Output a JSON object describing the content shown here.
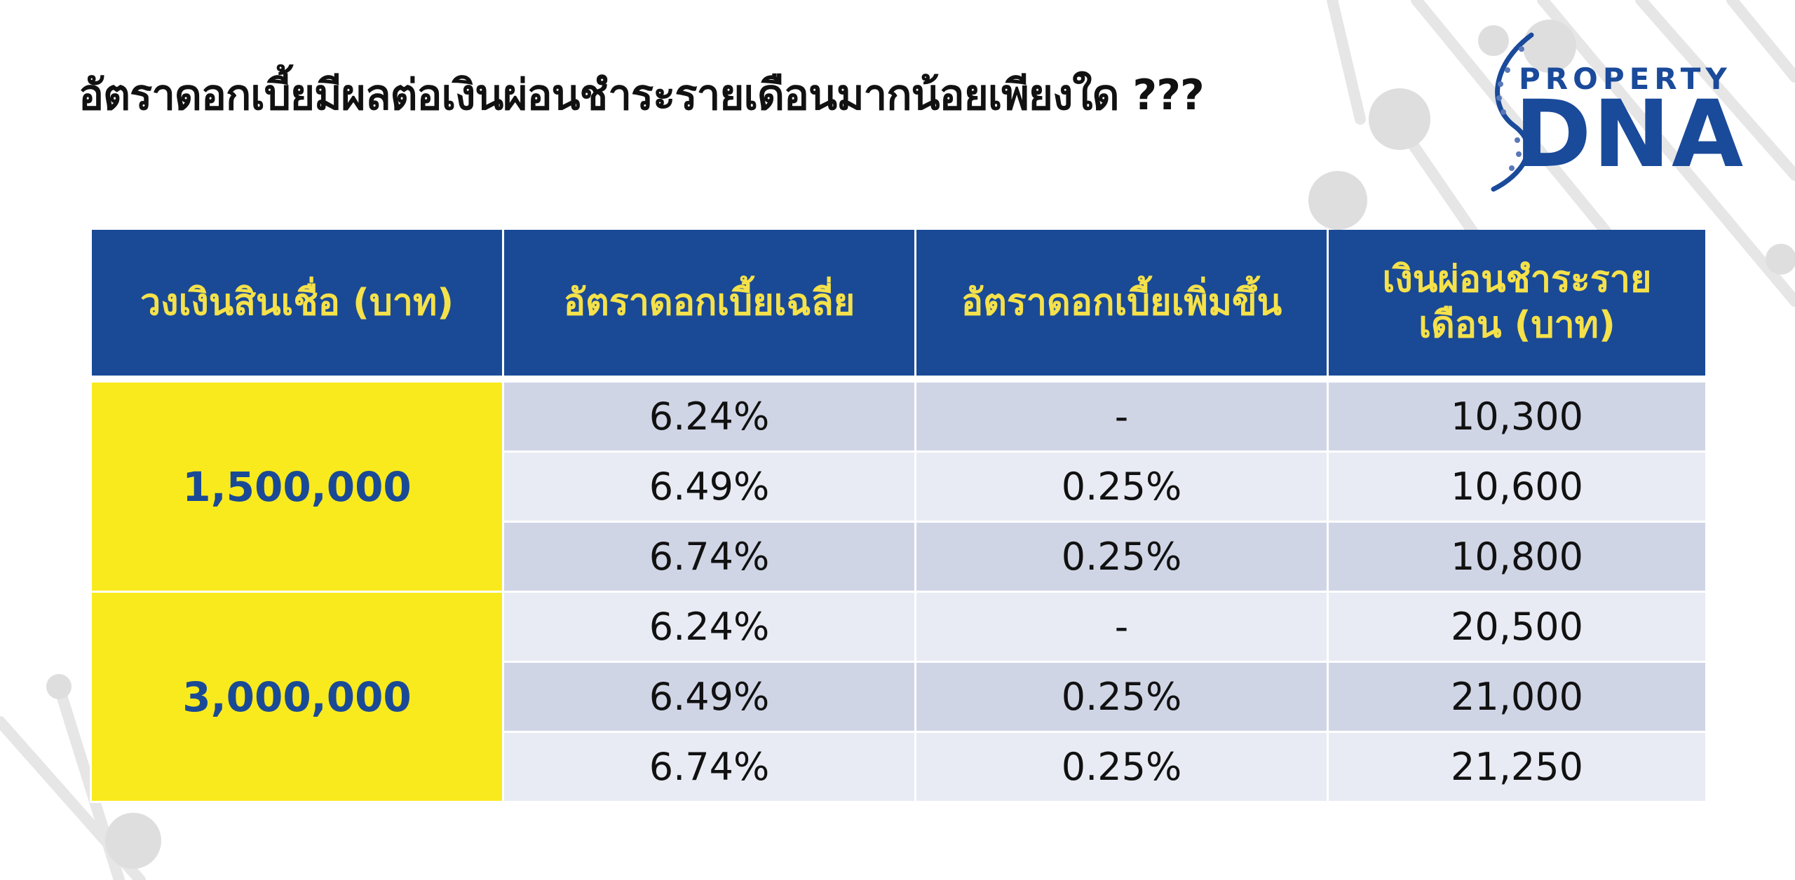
{
  "title": "อัตราดอกเบี้ยมีผลต่อเงินผ่อนชำระรายเดือนมากน้อยเพียงใด ???",
  "logo": {
    "top_word": "PROPERTY",
    "main_word": "DNA",
    "color": "#1a4a9a"
  },
  "colors": {
    "header_bg": "#1a4a96",
    "header_text": "#f5e14a",
    "loan_bg": "#f9ea1e",
    "row_dark": "#d0d5e6",
    "row_light": "#e8ebf3"
  },
  "table": {
    "headers": [
      "วงเงินสินเชื่อ (บาท)",
      "อัตราดอกเบี้ยเฉลี่ย",
      "อัตราดอกเบี้ยเพิ่มขึ้น",
      "เงินผ่อนชำระราย เดือน (บาท)"
    ],
    "groups": [
      {
        "loan": "1,500,000",
        "rows": [
          {
            "rate": "6.24%",
            "increase": "-",
            "payment": "10,300"
          },
          {
            "rate": "6.49%",
            "increase": "0.25%",
            "payment": "10,600"
          },
          {
            "rate": "6.74%",
            "increase": "0.25%",
            "payment": "10,800"
          }
        ]
      },
      {
        "loan": "3,000,000",
        "rows": [
          {
            "rate": "6.24%",
            "increase": "-",
            "payment": "20,500"
          },
          {
            "rate": "6.49%",
            "increase": "0.25%",
            "payment": "21,000"
          },
          {
            "rate": "6.74%",
            "increase": "0.25%",
            "payment": "21,250"
          }
        ]
      }
    ]
  }
}
